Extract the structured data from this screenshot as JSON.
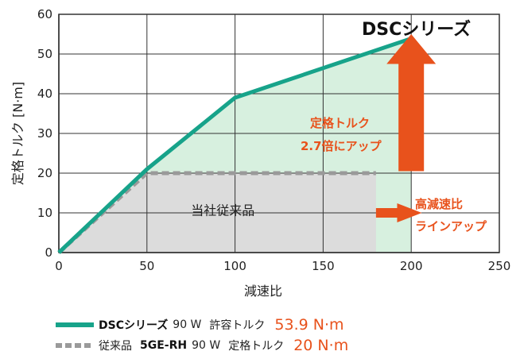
{
  "chart_data": {
    "type": "line",
    "title": "DSCシリーズ",
    "xlabel": "減速比",
    "ylabel": "定格トルク [N·m]",
    "xlim": [
      0,
      250
    ],
    "ylim": [
      0,
      60
    ],
    "xticks": [
      0,
      50,
      100,
      150,
      200,
      250
    ],
    "yticks": [
      0,
      10,
      20,
      30,
      40,
      50,
      60
    ],
    "grid": true,
    "series": [
      {
        "name": "DSCシリーズ",
        "x": [
          0,
          50,
          100,
          200
        ],
        "y": [
          0,
          21,
          39,
          53.9
        ],
        "color": "#17a38a",
        "style": "solid"
      },
      {
        "name": "従来品 5GE-RH",
        "x": [
          0,
          50,
          180
        ],
        "y": [
          0,
          20,
          20
        ],
        "color": "#9a9a9a",
        "style": "dashed"
      }
    ],
    "regions": [
      {
        "label": "当社従来品"
      }
    ],
    "annotations": [
      {
        "lines": [
          "定格トルク",
          "2.7倍にアップ"
        ]
      },
      {
        "lines": [
          "高減速比",
          "ラインアップ"
        ]
      }
    ]
  },
  "legend": [
    {
      "swatch": "solid",
      "name": "DSCシリーズ",
      "power": "90 W",
      "kind": "許容トルク",
      "value": "53.9 N·m"
    },
    {
      "swatch": "dashed",
      "prefix": "従来品",
      "name": "5GE-RH",
      "power": "90 W",
      "kind": "定格トルク",
      "value": "20 N·m"
    }
  ],
  "colors": {
    "accent": "#e8521c",
    "dsc": "#17a38a",
    "conventional": "#9a9a9a",
    "green_fill": "#d7f0df",
    "gray_fill": "#dcdcdc"
  }
}
